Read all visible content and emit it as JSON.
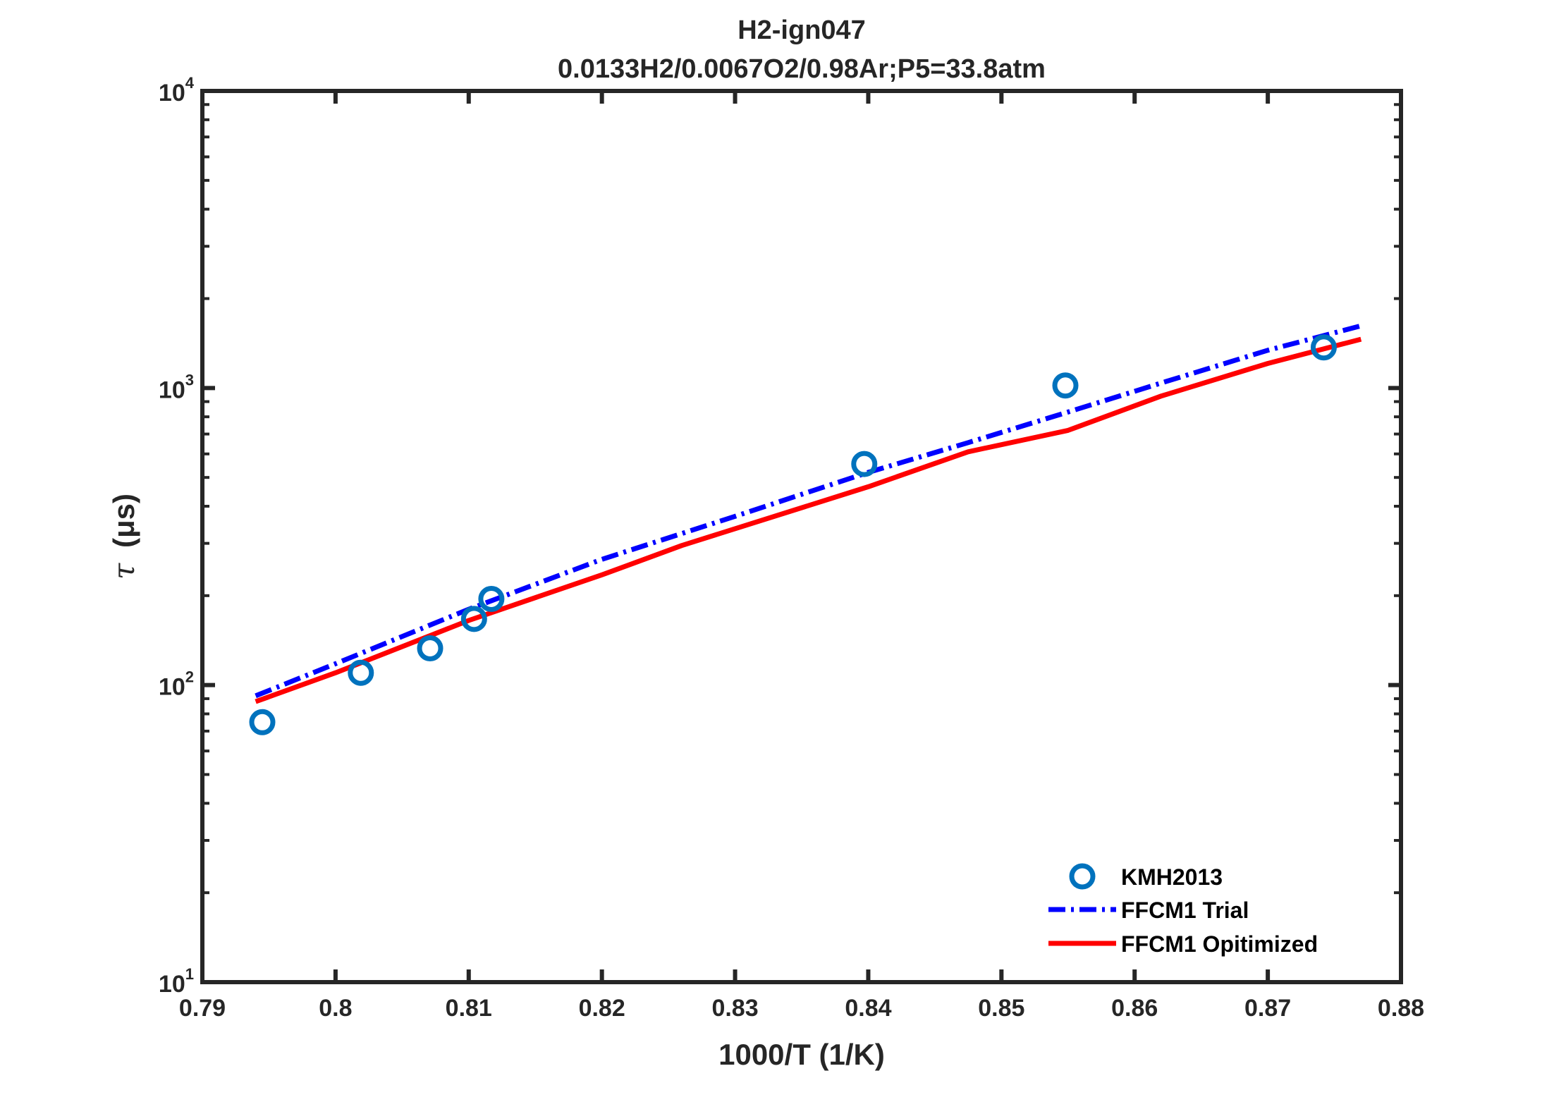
{
  "chart_data": {
    "type": "line",
    "title": "H2-ign047",
    "subtitle": "0.0133H2/0.0067O2/0.98Ar;P5=33.8atm",
    "xlabel": "1000/T (1/K)",
    "ylabel_symbol": "τ",
    "ylabel_unit": "(μs)",
    "xlim": [
      0.79,
      0.88
    ],
    "ylim": [
      10,
      10000
    ],
    "yscale": "log",
    "grid": false,
    "legend_position": "bottom-right",
    "x_ticks": [
      "0.79",
      "0.8",
      "0.81",
      "0.82",
      "0.83",
      "0.84",
      "0.85",
      "0.86",
      "0.87",
      "0.88"
    ],
    "y_ticks": [
      {
        "base": "10",
        "exp": "1",
        "value": 10
      },
      {
        "base": "10",
        "exp": "2",
        "value": 100
      },
      {
        "base": "10",
        "exp": "3",
        "value": 1000
      },
      {
        "base": "10",
        "exp": "4",
        "value": 10000
      }
    ],
    "series": [
      {
        "name": "KMH2013",
        "style": "markers",
        "color": "#0072bd",
        "x": [
          0.7945,
          0.8019,
          0.8071,
          0.8104,
          0.8117,
          0.8397,
          0.8548,
          0.8742
        ],
        "y": [
          75,
          110,
          133,
          167,
          195,
          555,
          1020,
          1370
        ]
      },
      {
        "name": "FFCM1 Trial",
        "style": "dash-dot",
        "color": "#0000ff",
        "x": [
          0.794,
          0.8,
          0.81,
          0.82,
          0.83,
          0.84,
          0.8475,
          0.855,
          0.862,
          0.87,
          0.877
        ],
        "y": [
          92,
          118,
          180,
          265,
          370,
          520,
          655,
          830,
          1040,
          1340,
          1620
        ]
      },
      {
        "name": "FFCM1 Opitimized",
        "style": "solid",
        "color": "#ff0000",
        "x": [
          0.794,
          0.8,
          0.81,
          0.82,
          0.826,
          0.84,
          0.8475,
          0.855,
          0.862,
          0.87,
          0.877
        ],
        "y": [
          88,
          110,
          165,
          235,
          295,
          465,
          610,
          720,
          940,
          1210,
          1460
        ]
      }
    ]
  }
}
